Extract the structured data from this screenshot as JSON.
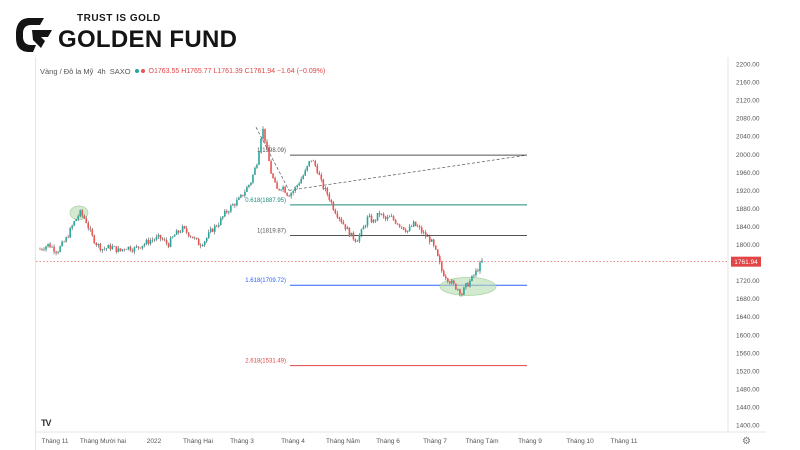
{
  "brand": {
    "tagline": "TRUST IS GOLD",
    "name": "GOLDEN FUND",
    "color": "#141414"
  },
  "header": {
    "symbol": "Vàng / Đô la Mỹ",
    "interval": "4h",
    "source": "SAXO",
    "ohlc": "O1763.55 H1765.77 L1761.39 C1761.94 −1.64 (−0.09%)"
  },
  "chart_data": {
    "type": "candlestick",
    "ylim": [
      1400,
      2200
    ],
    "y_ticks": [
      "2200.00",
      "2160.00",
      "2120.00",
      "2080.00",
      "2040.00",
      "2000.00",
      "1960.00",
      "1920.00",
      "1880.00",
      "1840.00",
      "1800.00",
      "1760.00",
      "1720.00",
      "1680.00",
      "1640.00",
      "1600.00",
      "1560.00",
      "1520.00",
      "1480.00",
      "1440.00",
      "1400.00"
    ],
    "x_ticks": [
      "Tháng 11",
      "Tháng Mười hai",
      "2022",
      "Tháng Hai",
      "Tháng 3",
      "Tháng 4",
      "Tháng Năm",
      "Tháng 6",
      "Tháng 7",
      "Tháng Tám",
      "Tháng 9",
      "Tháng 10",
      "Tháng 11"
    ],
    "last_price": {
      "value": 1761.94,
      "label": "1761.94",
      "color": "#e24545"
    },
    "price_path": [
      [
        0,
        1790
      ],
      [
        0.3,
        1800
      ],
      [
        0.6,
        1785
      ],
      [
        0.9,
        1810
      ],
      [
        1.2,
        1850
      ],
      [
        1.4,
        1870
      ],
      [
        1.6,
        1855
      ],
      [
        1.8,
        1820
      ],
      [
        2.0,
        1800
      ],
      [
        2.2,
        1790
      ],
      [
        2.5,
        1795
      ],
      [
        2.8,
        1785
      ],
      [
        3.0,
        1795
      ],
      [
        3.3,
        1790
      ],
      [
        3.6,
        1800
      ],
      [
        3.9,
        1810
      ],
      [
        4.2,
        1815
      ],
      [
        4.5,
        1800
      ],
      [
        4.7,
        1820
      ],
      [
        5.0,
        1835
      ],
      [
        5.3,
        1820
      ],
      [
        5.6,
        1800
      ],
      [
        5.8,
        1810
      ],
      [
        6.0,
        1830
      ],
      [
        6.3,
        1850
      ],
      [
        6.5,
        1870
      ],
      [
        6.8,
        1890
      ],
      [
        7.0,
        1900
      ],
      [
        7.2,
        1920
      ],
      [
        7.4,
        1940
      ],
      [
        7.6,
        1980
      ],
      [
        7.8,
        2060
      ],
      [
        7.9,
        2030
      ],
      [
        8.1,
        1960
      ],
      [
        8.3,
        1920
      ],
      [
        8.5,
        1930
      ],
      [
        8.7,
        1910
      ],
      [
        8.9,
        1920
      ],
      [
        9.1,
        1940
      ],
      [
        9.3,
        1960
      ],
      [
        9.5,
        1990
      ],
      [
        9.7,
        1970
      ],
      [
        9.9,
        1930
      ],
      [
        10.1,
        1910
      ],
      [
        10.3,
        1880
      ],
      [
        10.5,
        1860
      ],
      [
        10.7,
        1840
      ],
      [
        10.9,
        1820
      ],
      [
        11.1,
        1810
      ],
      [
        11.3,
        1830
      ],
      [
        11.5,
        1860
      ],
      [
        11.7,
        1850
      ],
      [
        11.9,
        1870
      ],
      [
        12.1,
        1855
      ],
      [
        12.3,
        1860
      ],
      [
        12.5,
        1850
      ],
      [
        12.7,
        1840
      ],
      [
        12.9,
        1830
      ],
      [
        13.1,
        1845
      ],
      [
        13.3,
        1835
      ],
      [
        13.5,
        1820
      ],
      [
        13.7,
        1810
      ],
      [
        13.9,
        1780
      ],
      [
        14.1,
        1740
      ],
      [
        14.3,
        1725
      ],
      [
        14.5,
        1710
      ],
      [
        14.7,
        1700
      ],
      [
        14.8,
        1690
      ],
      [
        14.9,
        1705
      ],
      [
        15.1,
        1720
      ],
      [
        15.3,
        1740
      ],
      [
        15.5,
        1762
      ]
    ],
    "fib_levels": [
      {
        "label": "1(1998.09)",
        "value": 1998.09,
        "color": "#555555"
      },
      {
        "label": "0.618(1887.95)",
        "value": 1887.95,
        "color": "#1a8a7a"
      },
      {
        "label": "1(1819.87)",
        "value": 1819.87,
        "color": "#555555"
      },
      {
        "label": "1.618(1709.72)",
        "value": 1709.72,
        "color": "#2962ff"
      },
      {
        "label": "2.618(1531.49)",
        "value": 1531.49,
        "color": "#e24545"
      }
    ],
    "colors": {
      "up": "#26a69a",
      "down": "#ef5350",
      "candle_wick": "#333333",
      "ellipse": "#b8dcb0"
    }
  },
  "tv_logo": "TV",
  "settings_icon": "gear-icon"
}
